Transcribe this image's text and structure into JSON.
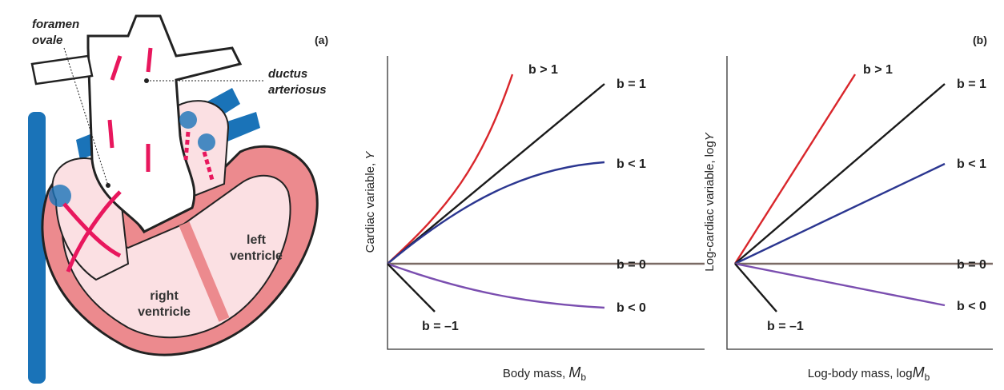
{
  "panel_a": {
    "panel_label": "(a)",
    "foramen_ovale": [
      "foramen",
      "ovale"
    ],
    "ductus_arteriosus": [
      "ductus",
      "arteriosus"
    ],
    "left_ventricle": [
      "left",
      "ventricle"
    ],
    "right_ventricle": [
      "right",
      "ventricle"
    ]
  },
  "panel_b": {
    "panel_label": "(b)",
    "y_label": {
      "text": "Cardiac variable, ",
      "var": "Y"
    },
    "x_label": {
      "text": "Body mass, ",
      "var": "M",
      "sub": "b"
    },
    "curves": [
      "b > 1",
      "b = 1",
      "b < 1",
      "b = 0",
      "b < 0",
      "b = –1"
    ]
  },
  "panel_c": {
    "panel_label": "(b)",
    "y_label": {
      "text": "Log-cardiac variable, log",
      "var": "Y"
    },
    "x_label": {
      "text": "Log-body mass, log",
      "var": "M",
      "sub": "b"
    },
    "curves": [
      "b > 1",
      "b = 1",
      "b < 1",
      "b = 0",
      "b < 0",
      "b = –1"
    ]
  }
}
